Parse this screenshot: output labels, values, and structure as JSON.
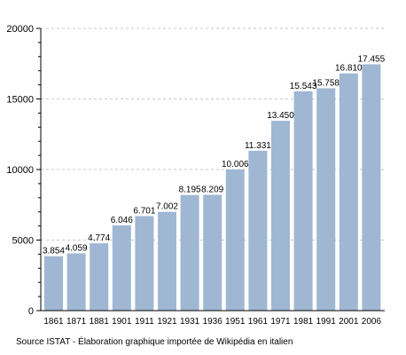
{
  "chart_data": {
    "type": "bar",
    "categories": [
      "1861",
      "1871",
      "1881",
      "1901",
      "1911",
      "1921",
      "1931",
      "1936",
      "1951",
      "1961",
      "1971",
      "1981",
      "1991",
      "2001",
      "2006"
    ],
    "values": [
      3854,
      4059,
      4774,
      6046,
      6701,
      7002,
      8195,
      8209,
      10006,
      11331,
      13450,
      15543,
      15758,
      16810,
      17455
    ],
    "data_labels": [
      "3.854",
      "4.059",
      "4.774",
      "6.046",
      "6.701",
      "7.002",
      "8.195",
      "8.209",
      "10.006",
      "11.331",
      "13.450",
      "15.543",
      "15.758",
      "16.810",
      "17.455"
    ],
    "y_ticks": [
      0,
      5000,
      10000,
      15000,
      20000
    ],
    "ylim": [
      0,
      20000
    ],
    "grid": "horizontal dashed",
    "bar_color": "#9fb7d3",
    "title": "",
    "xlabel": "",
    "ylabel": ""
  },
  "source_text": "Source ISTAT - Élaboration graphique importée de Wikipédia en italien"
}
